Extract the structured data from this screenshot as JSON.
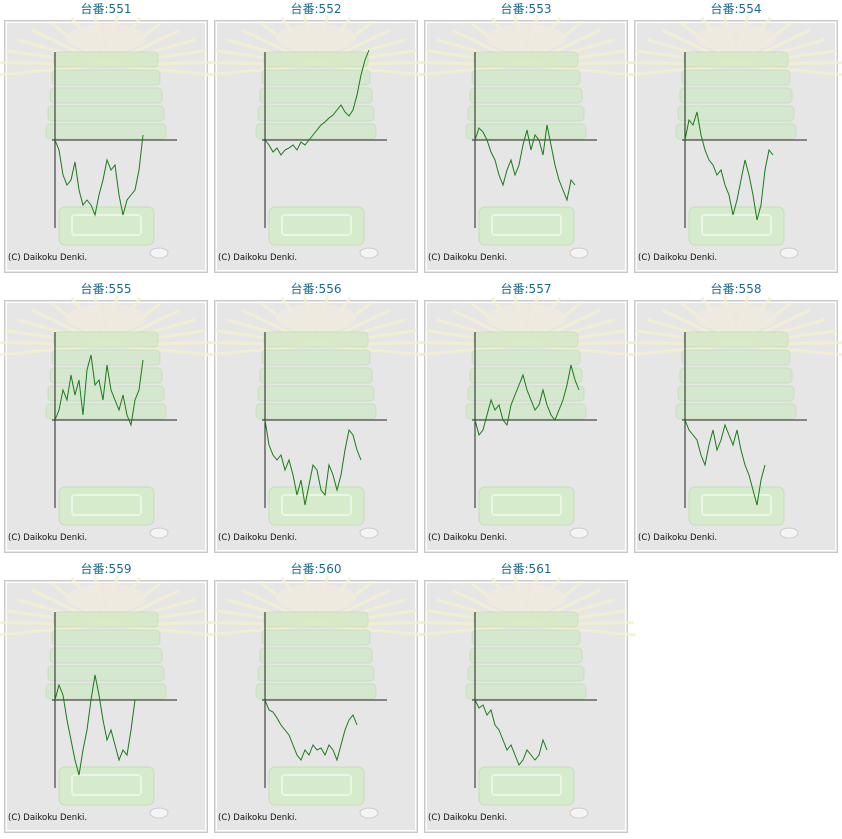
{
  "chart_data": [
    {
      "type": "line",
      "title": "台番:551",
      "credit": "(C) Daikoku Denki.",
      "color": "#1a7a1a",
      "xlim": [
        0,
        30
      ],
      "ylim": [
        -88,
        88
      ],
      "values": [
        0,
        -10,
        -35,
        -45,
        -40,
        -22,
        -50,
        -65,
        -60,
        -65,
        -75,
        -55,
        -40,
        -20,
        -30,
        -25,
        -55,
        -75,
        -60,
        -55,
        -50,
        -30,
        5
      ]
    },
    {
      "type": "line",
      "title": "台番:552",
      "credit": "(C) Daikoku Denki.",
      "color": "#1a7a1a",
      "xlim": [
        0,
        30
      ],
      "ylim": [
        -88,
        88
      ],
      "values": [
        0,
        -5,
        -12,
        -8,
        -15,
        -10,
        -8,
        -5,
        -10,
        -2,
        -5,
        0,
        5,
        10,
        15,
        18,
        22,
        25,
        30,
        35,
        28,
        24,
        30,
        45,
        65,
        80,
        90
      ]
    },
    {
      "type": "line",
      "title": "台番:553",
      "credit": "(C) Daikoku Denki.",
      "color": "#1a7a1a",
      "xlim": [
        0,
        30
      ],
      "ylim": [
        -88,
        88
      ],
      "values": [
        0,
        12,
        8,
        0,
        -12,
        -20,
        -35,
        -45,
        -30,
        -20,
        -35,
        -25,
        -5,
        10,
        -10,
        5,
        0,
        -15,
        15,
        -5,
        -25,
        -40,
        -50,
        -60,
        -40,
        -45
      ]
    },
    {
      "type": "line",
      "title": "台番:554",
      "credit": "(C) Daikoku Denki.",
      "color": "#1a7a1a",
      "xlim": [
        0,
        30
      ],
      "ylim": [
        -88,
        88
      ],
      "values": [
        0,
        20,
        15,
        28,
        5,
        -10,
        -20,
        -25,
        -35,
        -30,
        -45,
        -55,
        -75,
        -60,
        -40,
        -20,
        -35,
        -55,
        -80,
        -65,
        -30,
        -10,
        -15
      ]
    },
    {
      "type": "line",
      "title": "台番:555",
      "credit": "(C) Daikoku Denki.",
      "color": "#1a7a1a",
      "xlim": [
        0,
        30
      ],
      "ylim": [
        -88,
        88
      ],
      "values": [
        0,
        10,
        30,
        20,
        45,
        25,
        40,
        5,
        50,
        65,
        35,
        40,
        20,
        55,
        30,
        20,
        10,
        25,
        5,
        -5,
        20,
        30,
        60
      ]
    },
    {
      "type": "line",
      "title": "台番:556",
      "credit": "(C) Daikoku Denki.",
      "color": "#1a7a1a",
      "xlim": [
        0,
        30
      ],
      "ylim": [
        -88,
        88
      ],
      "values": [
        0,
        -25,
        -35,
        -40,
        -35,
        -50,
        -40,
        -55,
        -75,
        -60,
        -85,
        -65,
        -45,
        -50,
        -70,
        -75,
        -45,
        -55,
        -70,
        -55,
        -30,
        -10,
        -15,
        -30,
        -40
      ]
    },
    {
      "type": "line",
      "title": "台番:557",
      "credit": "(C) Daikoku Denki.",
      "color": "#1a7a1a",
      "xlim": [
        0,
        30
      ],
      "ylim": [
        -88,
        88
      ],
      "values": [
        0,
        -15,
        -10,
        5,
        20,
        10,
        15,
        0,
        -5,
        15,
        25,
        35,
        45,
        30,
        20,
        10,
        15,
        30,
        15,
        5,
        0,
        10,
        20,
        35,
        55,
        40,
        30
      ]
    },
    {
      "type": "line",
      "title": "台番:558",
      "credit": "(C) Daikoku Denki.",
      "color": "#1a7a1a",
      "xlim": [
        0,
        30
      ],
      "ylim": [
        -88,
        88
      ],
      "values": [
        0,
        -10,
        -15,
        -20,
        -35,
        -45,
        -25,
        -10,
        -30,
        -20,
        -5,
        -15,
        -25,
        -10,
        -30,
        -45,
        -55,
        -70,
        -85,
        -60,
        -45
      ]
    },
    {
      "type": "line",
      "title": "台番:559",
      "credit": "(C) Daikoku Denki.",
      "color": "#1a7a1a",
      "xlim": [
        0,
        30
      ],
      "ylim": [
        -88,
        88
      ],
      "values": [
        0,
        15,
        5,
        -20,
        -40,
        -60,
        -75,
        -50,
        -30,
        0,
        25,
        5,
        -20,
        -40,
        -30,
        -45,
        -60,
        -50,
        -55,
        -30,
        0
      ]
    },
    {
      "type": "line",
      "title": "台番:560",
      "credit": "(C) Daikoku Denki.",
      "color": "#1a7a1a",
      "xlim": [
        0,
        30
      ],
      "ylim": [
        -88,
        88
      ],
      "values": [
        0,
        -10,
        -12,
        -18,
        -25,
        -30,
        -35,
        -45,
        -55,
        -60,
        -50,
        -55,
        -45,
        -50,
        -48,
        -55,
        -45,
        -50,
        -60,
        -45,
        -30,
        -20,
        -15,
        -25
      ]
    },
    {
      "type": "line",
      "title": "台番:561",
      "credit": "(C) Daikoku Denki.",
      "color": "#1a7a1a",
      "xlim": [
        0,
        30
      ],
      "ylim": [
        -88,
        88
      ],
      "values": [
        0,
        -8,
        -5,
        -15,
        -10,
        -25,
        -30,
        -40,
        -50,
        -45,
        -55,
        -65,
        -60,
        -50,
        -55,
        -60,
        -55,
        -40,
        -50
      ]
    }
  ]
}
